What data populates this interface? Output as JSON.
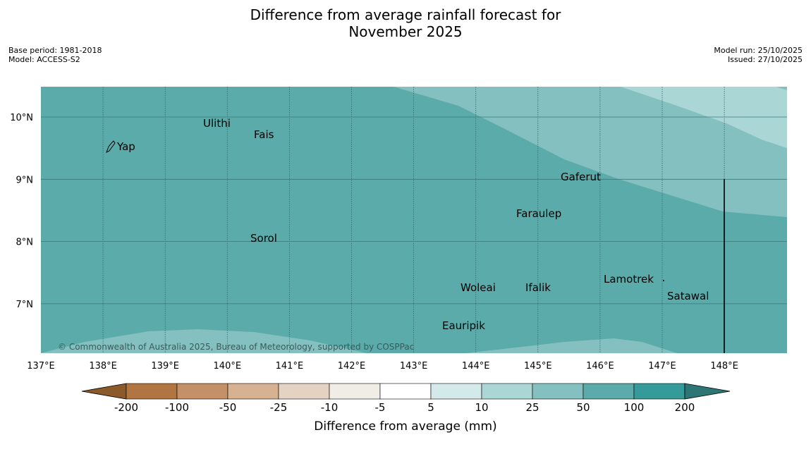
{
  "title_line1": "Difference from average rainfall forecast for",
  "title_line2": "November 2025",
  "meta_left": {
    "base_period": "Base period: 1981-2018",
    "model": "Model: ACCESS-S2"
  },
  "meta_right": {
    "model_run": "Model run: 25/10/2025",
    "issued": "Issued: 27/10/2025"
  },
  "map": {
    "copyright": "© Commonwealth of Australia 2025, Bureau of Meteorology, supported by COSPPac",
    "lon_ticks": [
      "137°E",
      "138°E",
      "139°E",
      "140°E",
      "141°E",
      "142°E",
      "143°E",
      "144°E",
      "145°E",
      "146°E",
      "147°E",
      "148°E"
    ],
    "lat_ticks": [
      "10°N",
      "9°N",
      "8°N",
      "7°N"
    ],
    "places": [
      {
        "name": "Yap"
      },
      {
        "name": "Ulithi"
      },
      {
        "name": "Fais"
      },
      {
        "name": "Gaferut"
      },
      {
        "name": "Faraulep"
      },
      {
        "name": "Sorol"
      },
      {
        "name": "Woleai"
      },
      {
        "name": "Ifalik"
      },
      {
        "name": "Lamotrek"
      },
      {
        "name": "Satawal"
      },
      {
        "name": "Eauripik"
      }
    ]
  },
  "colorbar": {
    "title": "Difference from average (mm)",
    "labels": [
      "-200",
      "-100",
      "-50",
      "-25",
      "-10",
      "-5",
      "5",
      "10",
      "25",
      "50",
      "100",
      "200"
    ],
    "colors": [
      "#8c5a2a",
      "#b07540",
      "#c49068",
      "#d6b292",
      "#e4d2c2",
      "#f0ece6",
      "#ffffff",
      "#d4e9e9",
      "#abd6d6",
      "#84c0bf",
      "#5babab",
      "#359a9a",
      "#2e7575"
    ]
  }
}
